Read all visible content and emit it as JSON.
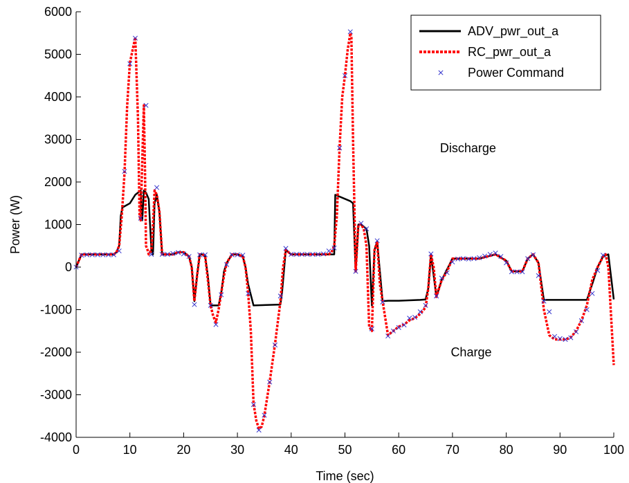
{
  "chart_data": {
    "type": "line",
    "xlabel": "Time (sec)",
    "ylabel": "Power (W)",
    "xlim": [
      0,
      100
    ],
    "ylim": [
      -4000,
      6000
    ],
    "xticks": [
      0,
      10,
      20,
      30,
      40,
      50,
      60,
      70,
      80,
      90,
      100
    ],
    "yticks": [
      -4000,
      -3000,
      -2000,
      -1000,
      0,
      1000,
      2000,
      3000,
      4000,
      5000,
      6000
    ],
    "grid": false,
    "legend_position": "top-right",
    "annotations": [
      {
        "text": "Discharge",
        "x": 70,
        "y": 2800
      },
      {
        "text": "Charge",
        "x": 72,
        "y": -2000
      }
    ],
    "series": [
      {
        "name": "ADV_pwr_out_a",
        "style": "solid",
        "color": "#000000",
        "x": [
          0,
          1,
          7,
          7.5,
          8,
          8.3,
          8.6,
          10,
          11,
          12,
          12.3,
          12.6,
          13,
          13.5,
          14,
          14.3,
          14.6,
          15,
          15.5,
          16,
          18,
          19,
          20,
          21,
          21.5,
          22,
          22.5,
          23,
          23.5,
          24,
          24.5,
          25,
          25.5,
          26,
          26.5,
          27,
          27.5,
          28,
          29,
          30,
          31,
          31.5,
          32,
          33,
          38,
          38.3,
          39,
          40,
          48,
          48.2,
          51,
          51.5,
          52,
          52.5,
          53,
          54,
          54.5,
          55,
          55.5,
          56,
          57,
          58,
          60,
          62,
          64,
          65,
          65.5,
          66,
          67,
          68,
          70,
          75,
          78,
          80,
          81,
          83,
          84,
          85,
          86,
          87,
          94,
          95,
          96,
          97,
          98,
          99,
          100
        ],
        "y": [
          0,
          300,
          300,
          350,
          500,
          1200,
          1400,
          1500,
          1700,
          1800,
          1100,
          1800,
          1750,
          1600,
          400,
          300,
          1500,
          1700,
          1300,
          300,
          300,
          350,
          350,
          250,
          0,
          -800,
          -200,
          300,
          300,
          250,
          -200,
          -900,
          -900,
          -900,
          -900,
          -600,
          -100,
          100,
          300,
          300,
          250,
          0,
          -400,
          -900,
          -880,
          -600,
          400,
          300,
          300,
          1700,
          1550,
          1500,
          -100,
          1000,
          1000,
          900,
          500,
          -900,
          400,
          600,
          -800,
          -790,
          -790,
          -780,
          -770,
          -760,
          -500,
          300,
          -700,
          -300,
          200,
          200,
          300,
          150,
          -100,
          -100,
          200,
          300,
          100,
          -770,
          -770,
          -770,
          -400,
          0,
          250,
          300,
          -760
        ],
        "markers": false
      },
      {
        "name": "RC_pwr_out_a",
        "style": "dotted",
        "color": "#ff0000",
        "x": [
          0,
          1,
          7,
          7.5,
          8,
          8.5,
          9,
          9.5,
          10,
          10.5,
          11,
          11.5,
          11.8,
          12,
          12.3,
          12.6,
          12.8,
          13,
          13.3,
          13.5,
          14,
          14.3,
          14.6,
          15,
          15.5,
          16,
          18,
          19,
          20,
          21,
          21.5,
          22,
          22.5,
          23,
          23.5,
          24,
          24.5,
          25,
          25.5,
          26,
          26.5,
          27,
          27.5,
          28,
          29,
          30,
          31,
          31.5,
          32,
          32.5,
          33,
          33.5,
          34,
          34.5,
          35,
          36,
          37,
          38,
          38.5,
          39,
          40,
          47,
          47.5,
          48,
          48.5,
          49,
          49.5,
          50,
          50.5,
          51,
          51.2,
          51.5,
          52,
          52.5,
          53,
          53.5,
          54,
          54.5,
          55,
          55.5,
          56,
          56.5,
          57,
          58,
          59,
          60,
          61,
          62,
          63,
          64,
          65,
          65.5,
          66,
          66.5,
          67,
          68,
          69,
          70,
          75,
          78,
          80,
          81,
          83,
          84,
          85,
          86,
          87,
          88,
          89,
          90,
          91,
          92,
          93,
          94,
          95,
          96,
          97,
          98,
          98.5,
          99,
          100
        ],
        "y": [
          0,
          300,
          300,
          350,
          500,
          1200,
          2200,
          3800,
          4800,
          5100,
          5400,
          3500,
          1200,
          1100,
          2500,
          3800,
          2300,
          500,
          400,
          300,
          400,
          1000,
          1800,
          1700,
          1300,
          300,
          300,
          350,
          350,
          250,
          0,
          -800,
          -200,
          300,
          300,
          250,
          -300,
          -900,
          -1150,
          -1300,
          -1000,
          -600,
          -200,
          100,
          300,
          300,
          250,
          0,
          -600,
          -1500,
          -3200,
          -3600,
          -3800,
          -3750,
          -3500,
          -2700,
          -1800,
          -800,
          0,
          400,
          300,
          300,
          350,
          500,
          1200,
          2800,
          4000,
          4500,
          5100,
          5500,
          5400,
          3000,
          -100,
          1000,
          1000,
          900,
          500,
          -1400,
          -1500,
          400,
          600,
          -400,
          -800,
          -1600,
          -1500,
          -1400,
          -1350,
          -1250,
          -1200,
          -1100,
          -950,
          -500,
          300,
          0,
          -700,
          -300,
          -100,
          200,
          200,
          300,
          150,
          -100,
          -100,
          200,
          300,
          100,
          -1000,
          -1600,
          -1700,
          -1700,
          -1700,
          -1650,
          -1500,
          -1250,
          -900,
          -300,
          0,
          250,
          300,
          0,
          -2300
        ],
        "markers": false
      },
      {
        "name": "Power Command",
        "style": "marker-x",
        "color": "#3333cc",
        "x": [
          0,
          1,
          2,
          3,
          4,
          5,
          6,
          7,
          8,
          9,
          10,
          11,
          12,
          13,
          14,
          15,
          16,
          17,
          18,
          19,
          20,
          21,
          22,
          23,
          24,
          25,
          26,
          27,
          28,
          29,
          30,
          31,
          32,
          33,
          34,
          35,
          36,
          37,
          38,
          39,
          40,
          41,
          42,
          43,
          44,
          45,
          46,
          47,
          48,
          49,
          50,
          51,
          52,
          53,
          54,
          55,
          56,
          57,
          58,
          59,
          60,
          61,
          62,
          63,
          64,
          65,
          66,
          67,
          68,
          69,
          70,
          71,
          72,
          73,
          74,
          75,
          76,
          77,
          78,
          79,
          80,
          81,
          82,
          83,
          84,
          85,
          86,
          87,
          88,
          89,
          90,
          91,
          92,
          93,
          94,
          95,
          96,
          97,
          98
        ],
        "y": [
          0,
          280,
          290,
          290,
          290,
          290,
          290,
          290,
          380,
          2250,
          4780,
          5380,
          1150,
          3800,
          300,
          1870,
          300,
          300,
          320,
          340,
          310,
          250,
          -880,
          290,
          290,
          -900,
          -1350,
          -650,
          60,
          290,
          290,
          280,
          -620,
          -3230,
          -3830,
          -3480,
          -2700,
          -1830,
          -680,
          440,
          300,
          300,
          300,
          300,
          300,
          300,
          310,
          380,
          450,
          2800,
          4500,
          5530,
          -100,
          1030,
          900,
          -1450,
          620,
          -820,
          -1620,
          -1500,
          -1420,
          -1360,
          -1200,
          -1180,
          -1050,
          -900,
          310,
          -680,
          -260,
          -130,
          120,
          190,
          200,
          190,
          200,
          220,
          260,
          300,
          330,
          250,
          100,
          -110,
          -110,
          -110,
          200,
          290,
          -200,
          -800,
          -1050,
          -1630,
          -1680,
          -1700,
          -1660,
          -1520,
          -1260,
          -1000,
          -620,
          -80,
          280
        ],
        "markers": true
      }
    ]
  },
  "colors": {
    "adv": "#000000",
    "rc": "#ff0000",
    "cmd": "#3333cc",
    "axes": "#000000",
    "background": "#ffffff"
  }
}
